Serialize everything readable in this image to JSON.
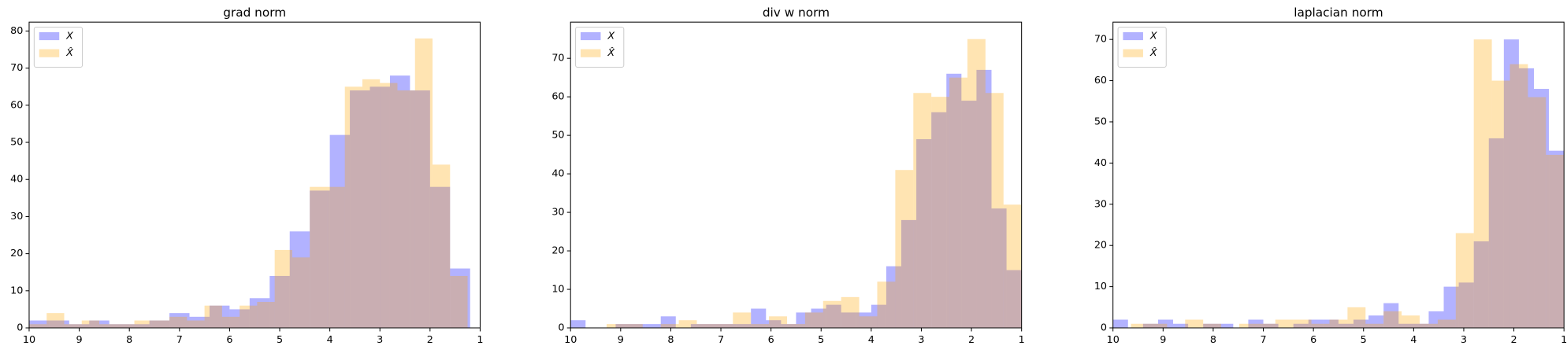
{
  "chart_data": [
    {
      "type": "histogram",
      "title": "grad norm",
      "xlim": [
        10,
        1
      ],
      "xticks": [
        10,
        9,
        8,
        7,
        6,
        5,
        4,
        3,
        2,
        1
      ],
      "ylim": [
        0,
        82.4
      ],
      "yticks": [
        0,
        10,
        20,
        30,
        40,
        50,
        60,
        70,
        80
      ],
      "legend": "upper left",
      "alpha": 0.3,
      "series": [
        {
          "name": "X",
          "color": "#0000ff",
          "bins": [
            10,
            9.6,
            9.2,
            8.8,
            8.4,
            8,
            7.6,
            7.2,
            6.8,
            6.4,
            6,
            5.6,
            5.2,
            4.8,
            4.4,
            4,
            3.6,
            3.2,
            2.8,
            2.4,
            2,
            1.6,
            1.2
          ],
          "values": [
            2,
            2,
            1,
            2,
            1,
            1,
            2,
            4,
            3,
            6,
            5,
            8,
            14,
            26,
            37,
            52,
            64,
            65,
            68,
            64,
            38,
            16
          ]
        },
        {
          "name": "X̂",
          "color": "#ffa500",
          "bins": [
            10,
            9.65,
            9.3,
            8.95,
            8.6,
            8.25,
            7.9,
            7.55,
            7.2,
            6.85,
            6.5,
            6.15,
            5.8,
            5.45,
            5.1,
            4.75,
            4.4,
            4.05,
            3.7,
            3.35,
            3,
            2.65,
            2.3,
            1.95,
            1.6,
            1.25
          ],
          "values": [
            1,
            4,
            1,
            2,
            1,
            1,
            2,
            2,
            3,
            2,
            6,
            3,
            6,
            7,
            21,
            19,
            38,
            38,
            65,
            67,
            66,
            64,
            78,
            44,
            14
          ]
        }
      ]
    },
    {
      "type": "histogram",
      "title": "div w norm",
      "xlim": [
        10,
        1
      ],
      "xticks": [
        10,
        9,
        8,
        7,
        6,
        5,
        4,
        3,
        2,
        1
      ],
      "ylim": [
        0,
        79.4
      ],
      "yticks": [
        0,
        10,
        20,
        30,
        40,
        50,
        60,
        70
      ],
      "legend": "upper left",
      "alpha": 0.3,
      "series": [
        {
          "name": "X",
          "color": "#0000ff",
          "bins": [
            10,
            9.7,
            9.4,
            9.1,
            8.8,
            8.5,
            8.2,
            7.9,
            7.6,
            7.3,
            7,
            6.7,
            6.4,
            6.1,
            5.8,
            5.5,
            5.2,
            4.9,
            4.6,
            4.3,
            4,
            3.7,
            3.4,
            3.1,
            2.8,
            2.5,
            2.2,
            1.9,
            1.6,
            1.3,
            1
          ],
          "values": [
            2,
            0,
            0,
            1,
            1,
            1,
            3,
            0,
            1,
            1,
            1,
            1,
            5,
            2,
            1,
            4,
            5,
            6,
            4,
            4,
            6,
            16,
            28,
            49,
            56,
            66,
            59,
            67,
            31,
            15
          ]
        },
        {
          "name": "X̂",
          "color": "#ffa500",
          "bins": [
            10,
            9.64,
            9.28,
            8.92,
            8.56,
            8.2,
            7.84,
            7.48,
            7.12,
            6.76,
            6.4,
            6.04,
            5.68,
            5.32,
            4.96,
            4.6,
            4.24,
            3.88,
            3.52,
            3.16,
            2.8,
            2.44,
            2.08,
            1.72,
            1.36,
            1
          ],
          "values": [
            0,
            0,
            1,
            1,
            0,
            1,
            2,
            1,
            1,
            4,
            1,
            3,
            1,
            4,
            7,
            8,
            3,
            12,
            41,
            61,
            60,
            65,
            75,
            61,
            32
          ]
        }
      ]
    },
    {
      "type": "histogram",
      "title": "laplacian norm",
      "xlim": [
        10,
        1
      ],
      "xticks": [
        10,
        9,
        8,
        7,
        6,
        5,
        4,
        3,
        2,
        1
      ],
      "ylim": [
        0,
        74.2
      ],
      "yticks": [
        0,
        10,
        20,
        30,
        40,
        50,
        60,
        70
      ],
      "legend": "upper left",
      "alpha": 0.3,
      "series": [
        {
          "name": "X",
          "color": "#0000ff",
          "bins": [
            10,
            9.7,
            9.4,
            9.1,
            8.8,
            8.5,
            8.2,
            7.9,
            7.6,
            7.3,
            7,
            6.7,
            6.4,
            6.1,
            5.8,
            5.5,
            5.2,
            4.9,
            4.6,
            4.3,
            4,
            3.7,
            3.4,
            3.1,
            2.8,
            2.5,
            2.2,
            1.9,
            1.6,
            1.3,
            1
          ],
          "values": [
            2,
            0,
            1,
            2,
            1,
            0,
            1,
            1,
            0,
            2,
            1,
            0,
            1,
            2,
            2,
            1,
            2,
            3,
            6,
            1,
            1,
            4,
            10,
            11,
            21,
            46,
            70,
            63,
            58,
            43
          ]
        },
        {
          "name": "X̂",
          "color": "#ffa500",
          "bins": [
            10,
            9.64,
            9.28,
            8.92,
            8.56,
            8.2,
            7.84,
            7.48,
            7.12,
            6.76,
            6.4,
            6.04,
            5.68,
            5.32,
            4.96,
            4.6,
            4.24,
            3.88,
            3.52,
            3.16,
            2.8,
            2.44,
            2.08,
            1.72,
            1.36,
            1
          ],
          "values": [
            0,
            1,
            1,
            0,
            2,
            1,
            0,
            1,
            1,
            2,
            2,
            1,
            2,
            5,
            1,
            4,
            3,
            1,
            2,
            23,
            70,
            60,
            64,
            56,
            42
          ]
        }
      ]
    }
  ]
}
